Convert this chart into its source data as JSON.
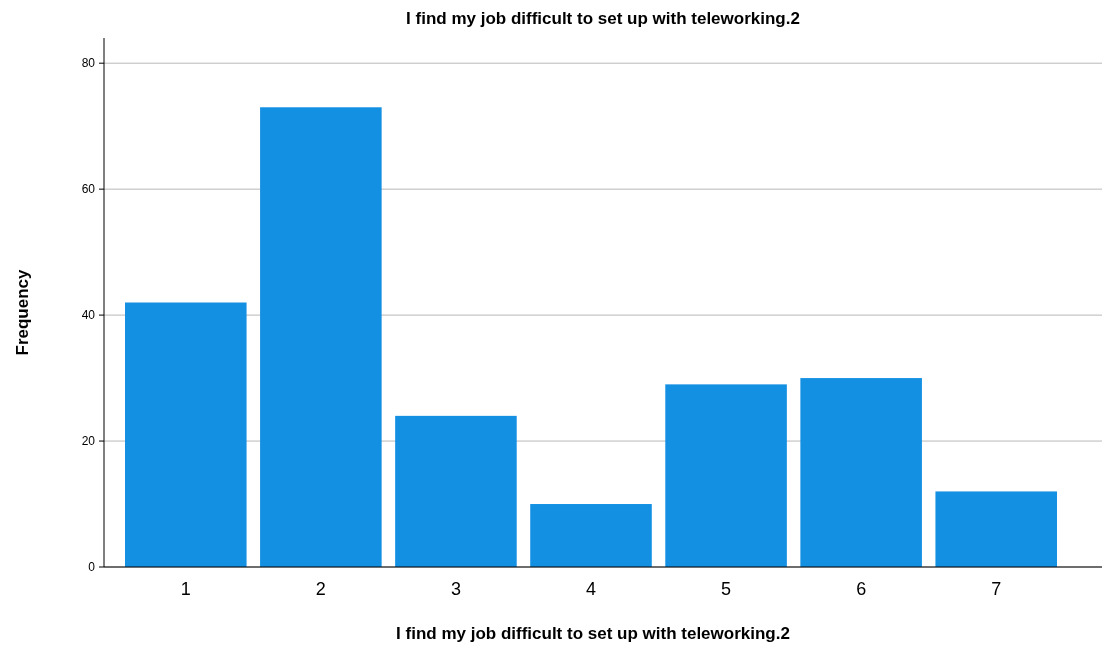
{
  "chart_data": {
    "type": "bar",
    "title": "I find my job difficult to set up with teleworking.2",
    "xlabel": "I find my job difficult to set up with teleworking.2",
    "ylabel": "Frequency",
    "categories": [
      "1",
      "2",
      "3",
      "4",
      "5",
      "6",
      "7"
    ],
    "values": [
      42,
      73,
      24,
      10,
      29,
      30,
      12
    ],
    "color": "#1490e3",
    "ylim": [
      0,
      84
    ],
    "yticks": [
      0,
      20,
      40,
      60,
      80
    ],
    "grid": "y"
  }
}
